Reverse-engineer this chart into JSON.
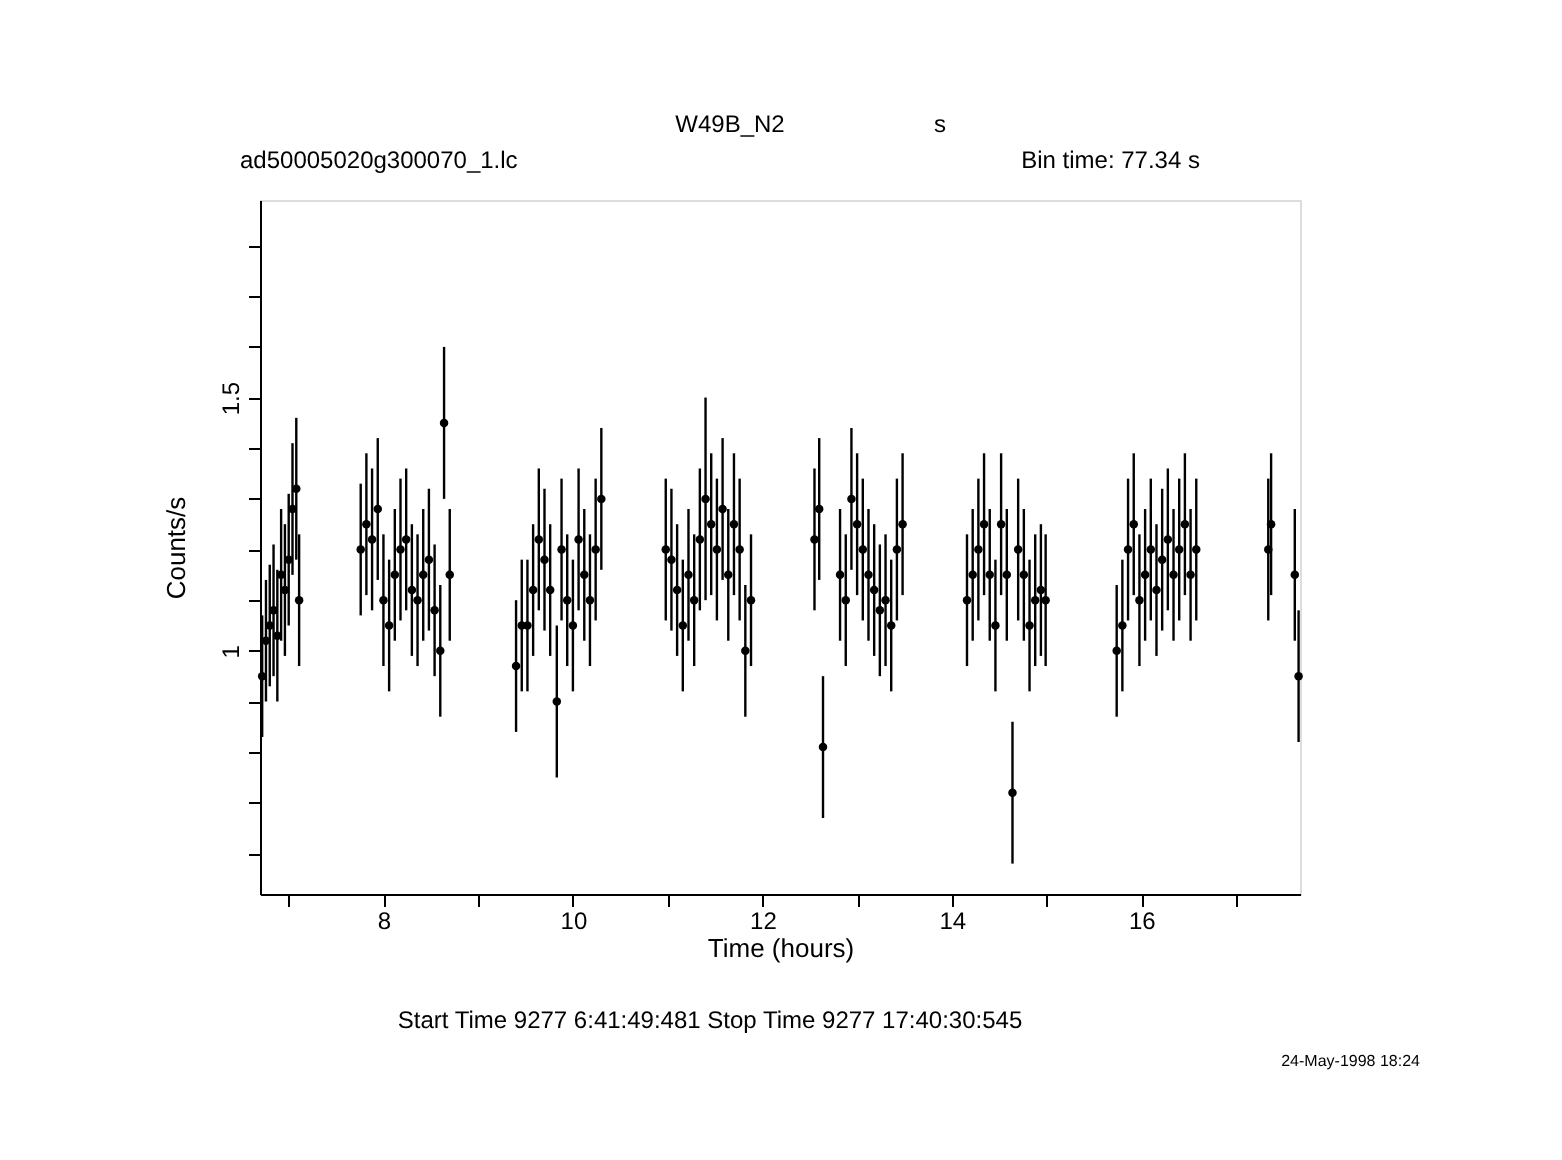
{
  "chart_data": {
    "type": "scatter",
    "title": "W49B_N2",
    "xlabel": "Time (hours)",
    "ylabel": "Counts/s",
    "annotations": [
      "s",
      "ad50005020g300070_1.lc",
      "Bin time:     77.34     s",
      "Start Time   9277   6:41:49:481     Stop Time   9277  17:40:30:545",
      "24-May-1998 18:24"
    ],
    "xlim": [
      6.697,
      17.675
    ],
    "ylim": [
      0.52,
      1.89
    ],
    "xticks": [
      {
        "value": 7,
        "label": null
      },
      8,
      {
        "value": 9,
        "label": null
      },
      10,
      {
        "value": 11,
        "label": null
      },
      12,
      {
        "value": 13,
        "label": null
      },
      14,
      {
        "value": 15,
        "label": null
      },
      16,
      {
        "value": 17,
        "label": null
      }
    ],
    "yticks": [
      {
        "value": 0.6,
        "label": null
      },
      {
        "value": 0.7,
        "label": null
      },
      {
        "value": 0.8,
        "label": null
      },
      {
        "value": 0.9,
        "label": null
      },
      1,
      {
        "value": 1.1,
        "label": null
      },
      {
        "value": 1.2,
        "label": null
      },
      {
        "value": 1.3,
        "label": null
      },
      {
        "value": 1.4,
        "label": null
      },
      1.5,
      {
        "value": 1.6,
        "label": null
      },
      {
        "value": 1.7,
        "label": null
      },
      {
        "value": 1.8,
        "label": null
      }
    ],
    "grid": false,
    "marker": "circle",
    "series": [
      {
        "color": "#000000",
        "x": [
          6.72,
          6.76,
          6.8,
          6.84,
          6.88,
          6.92,
          6.96,
          7.0,
          7.04,
          7.08,
          7.11,
          7.76,
          7.82,
          7.88,
          7.94,
          8.0,
          8.06,
          8.12,
          8.18,
          8.24,
          8.3,
          8.36,
          8.42,
          8.48,
          8.54,
          8.6,
          8.64,
          8.7,
          9.4,
          9.46,
          9.52,
          9.58,
          9.64,
          9.7,
          9.76,
          9.83,
          9.88,
          9.94,
          10.0,
          10.06,
          10.12,
          10.18,
          10.24,
          10.3,
          10.98,
          11.04,
          11.1,
          11.16,
          11.22,
          11.28,
          11.34,
          11.4,
          11.46,
          11.52,
          11.58,
          11.64,
          11.7,
          11.76,
          11.82,
          11.88,
          12.55,
          12.6,
          12.64,
          12.82,
          12.88,
          12.94,
          13.0,
          13.06,
          13.12,
          13.18,
          13.24,
          13.3,
          13.36,
          13.42,
          13.48,
          14.16,
          14.22,
          14.28,
          14.34,
          14.4,
          14.46,
          14.52,
          14.58,
          14.64,
          14.7,
          14.76,
          14.82,
          14.88,
          14.94,
          14.99,
          15.74,
          15.8,
          15.86,
          15.92,
          15.98,
          16.04,
          16.1,
          16.16,
          16.22,
          16.28,
          16.34,
          16.4,
          16.46,
          16.52,
          16.58,
          17.34,
          17.37,
          17.62,
          17.66
        ],
        "values": [
          0.95,
          1.02,
          1.05,
          1.08,
          1.03,
          1.15,
          1.12,
          1.18,
          1.28,
          1.32,
          1.1,
          1.2,
          1.25,
          1.22,
          1.28,
          1.1,
          1.05,
          1.15,
          1.2,
          1.22,
          1.12,
          1.1,
          1.15,
          1.18,
          1.08,
          1.0,
          1.45,
          1.15,
          0.97,
          1.05,
          1.05,
          1.12,
          1.22,
          1.18,
          1.12,
          0.9,
          1.2,
          1.1,
          1.05,
          1.22,
          1.15,
          1.1,
          1.2,
          1.3,
          1.2,
          1.18,
          1.12,
          1.05,
          1.15,
          1.1,
          1.22,
          1.3,
          1.25,
          1.2,
          1.28,
          1.15,
          1.25,
          1.2,
          1.0,
          1.1,
          1.22,
          1.28,
          0.81,
          1.15,
          1.1,
          1.3,
          1.25,
          1.2,
          1.15,
          1.12,
          1.08,
          1.1,
          1.05,
          1.2,
          1.25,
          1.1,
          1.15,
          1.2,
          1.25,
          1.15,
          1.05,
          1.25,
          1.15,
          0.72,
          1.2,
          1.15,
          1.05,
          1.1,
          1.12,
          1.1,
          1.0,
          1.05,
          1.2,
          1.25,
          1.1,
          1.15,
          1.2,
          1.12,
          1.18,
          1.22,
          1.15,
          1.2,
          1.25,
          1.15,
          1.2,
          1.2,
          1.25,
          1.15,
          0.95
        ],
        "errors": [
          0.12,
          0.12,
          0.12,
          0.13,
          0.13,
          0.13,
          0.13,
          0.13,
          0.13,
          0.14,
          0.13,
          0.13,
          0.14,
          0.14,
          0.14,
          0.13,
          0.13,
          0.13,
          0.14,
          0.14,
          0.13,
          0.13,
          0.13,
          0.14,
          0.13,
          0.13,
          0.15,
          0.13,
          0.13,
          0.13,
          0.13,
          0.13,
          0.14,
          0.14,
          0.13,
          0.15,
          0.14,
          0.13,
          0.13,
          0.14,
          0.13,
          0.13,
          0.14,
          0.14,
          0.14,
          0.14,
          0.13,
          0.13,
          0.13,
          0.13,
          0.14,
          0.2,
          0.14,
          0.14,
          0.14,
          0.13,
          0.14,
          0.14,
          0.13,
          0.13,
          0.14,
          0.14,
          0.14,
          0.13,
          0.13,
          0.14,
          0.14,
          0.14,
          0.13,
          0.13,
          0.13,
          0.13,
          0.13,
          0.14,
          0.14,
          0.13,
          0.13,
          0.14,
          0.14,
          0.13,
          0.13,
          0.14,
          0.13,
          0.14,
          0.14,
          0.13,
          0.13,
          0.13,
          0.13,
          0.13,
          0.13,
          0.13,
          0.14,
          0.14,
          0.13,
          0.13,
          0.14,
          0.13,
          0.14,
          0.14,
          0.13,
          0.14,
          0.14,
          0.13,
          0.14,
          0.14,
          0.14,
          0.13,
          0.13
        ]
      }
    ]
  }
}
